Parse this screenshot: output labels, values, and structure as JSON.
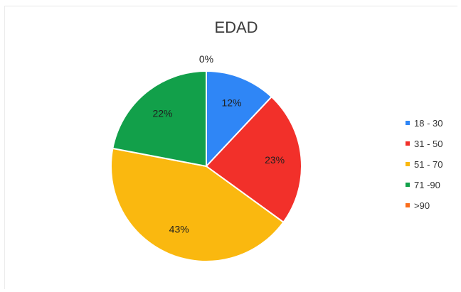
{
  "chart_data": {
    "type": "pie",
    "title": "EDAD",
    "legend_position": "right",
    "slices": [
      {
        "label": "18 - 30",
        "value": 12,
        "value_label": "12%",
        "color": "#2f86f6"
      },
      {
        "label": "31 - 50",
        "value": 23,
        "value_label": "23%",
        "color": "#f2302a"
      },
      {
        "label": "51 - 70",
        "value": 43,
        "value_label": "43%",
        "color": "#fab80f"
      },
      {
        "label": "71 -90",
        "value": 22,
        "value_label": "22%",
        "color": "#12a04a"
      },
      {
        "label": ">90",
        "value": 0,
        "value_label": "0%",
        "color": "#fa6d1a"
      }
    ]
  }
}
